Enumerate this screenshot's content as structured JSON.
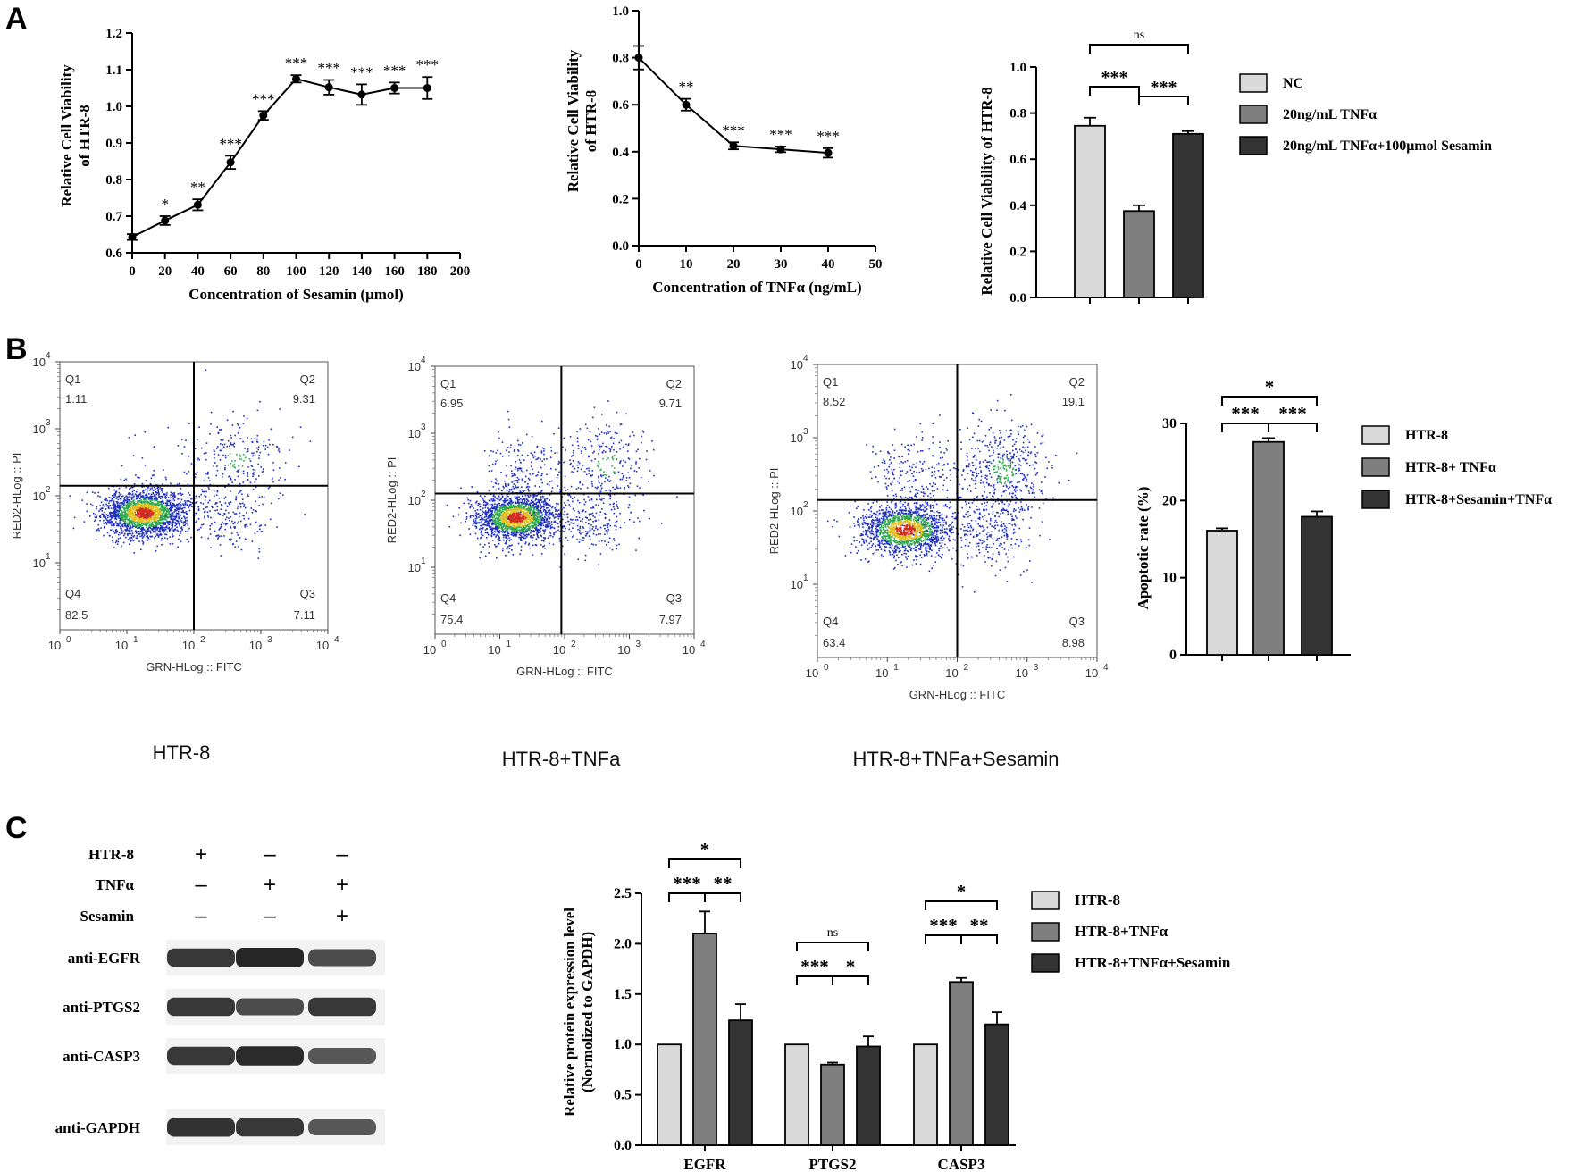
{
  "panel_labels": [
    "A",
    "B",
    "C"
  ],
  "colors": {
    "light": "#d9d9d9",
    "mid": "#7f7f7f",
    "dark": "#333333",
    "flow_low": "#1f2fbf",
    "flow_mid": "#2fa84f",
    "flow_high": "#e0c020",
    "flow_peak": "#d22a1e"
  },
  "chart_data": [
    {
      "id": "A1",
      "type": "line",
      "title": "",
      "xlabel": "Concentration of Sesamin (μmol)",
      "ylabel": "Relative Cell Viability of HTR-8",
      "ylabel_lines": [
        "Relative Cell Viability",
        "of HTR-8"
      ],
      "xlim": [
        0,
        200
      ],
      "ylim": [
        0.6,
        1.2
      ],
      "xticks": [
        "0",
        "20",
        "40",
        "60",
        "80",
        "100",
        "120",
        "140",
        "160",
        "180",
        "200"
      ],
      "yticks": [
        "0.6",
        "0.7",
        "0.8",
        "0.9",
        "1.0",
        "1.1",
        "1.2"
      ],
      "x": [
        0,
        20,
        40,
        60,
        80,
        100,
        120,
        140,
        160,
        180
      ],
      "y": [
        0.643,
        0.688,
        0.731,
        0.847,
        0.975,
        1.075,
        1.052,
        1.032,
        1.05,
        1.05
      ],
      "err": [
        0.008,
        0.012,
        0.015,
        0.018,
        0.012,
        0.01,
        0.02,
        0.028,
        0.015,
        0.03
      ],
      "sig": [
        "",
        "*",
        "**",
        "***",
        "***",
        "***",
        "***",
        "***",
        "***",
        "***"
      ]
    },
    {
      "id": "A2",
      "type": "line",
      "xlabel": "Concentration of TNFα (ng/mL)",
      "ylabel": "Relative Cell Viability of HTR-8",
      "ylabel_lines": [
        "Relative Cell Viability",
        "of HTR-8"
      ],
      "xlim": [
        0,
        50
      ],
      "ylim": [
        0,
        1.0
      ],
      "xticks": [
        "0",
        "10",
        "20",
        "30",
        "40",
        "50"
      ],
      "yticks": [
        "0.0",
        "0.2",
        "0.4",
        "0.6",
        "0.8",
        "1.0"
      ],
      "x": [
        0,
        10,
        20,
        30,
        40
      ],
      "y": [
        0.8,
        0.6,
        0.425,
        0.41,
        0.395
      ],
      "err": [
        0.05,
        0.025,
        0.015,
        0.012,
        0.02
      ],
      "sig": [
        "",
        "**",
        "***",
        "***",
        "***"
      ]
    },
    {
      "id": "A3",
      "type": "bar",
      "ylabel": "Relative Cell Viability of HTR-8",
      "ylim": [
        0,
        1.0
      ],
      "yticks": [
        "0.0",
        "0.2",
        "0.4",
        "0.6",
        "0.8",
        "1.0"
      ],
      "categories": [
        "NC",
        "20ng/mL TNFα",
        "20ng/mL TNFα+100μmol Sesamin"
      ],
      "values": [
        0.745,
        0.375,
        0.71
      ],
      "err": [
        0.035,
        0.025,
        0.012
      ],
      "legend": [
        "NC",
        "20ng/mL TNFα",
        "20ng/mL TNFα+100μmol Sesamin"
      ],
      "comparisons": [
        {
          "a": 0,
          "b": 1,
          "label": "***"
        },
        {
          "a": 1,
          "b": 2,
          "label": "***"
        },
        {
          "a": 0,
          "b": 2,
          "label": "ns"
        }
      ]
    },
    {
      "id": "B-flow-1",
      "type": "scatter",
      "title": "HTR-8",
      "xlabel": "GRN-HLog :: FITC",
      "ylabel": "RED2-HLog :: PI",
      "tick_labels": [
        "10",
        "10",
        "10",
        "10",
        "10"
      ],
      "tick_exponents": [
        "0",
        "1",
        "2",
        "3",
        "4"
      ],
      "quadrants": {
        "Q1": "1.11",
        "Q2": "9.31",
        "Q3": "7.11",
        "Q4": "82.5"
      },
      "quadrant_names": [
        "Q1",
        "Q2",
        "Q3",
        "Q4"
      ],
      "gate": [
        2.0,
        2.15
      ],
      "seed": 11
    },
    {
      "id": "B-flow-2",
      "type": "scatter",
      "title": "HTR-8+TNFa",
      "xlabel": "GRN-HLog :: FITC",
      "ylabel": "RED2-HLog :: PI",
      "tick_labels": [
        "10",
        "10",
        "10",
        "10",
        "10"
      ],
      "tick_exponents": [
        "0",
        "1",
        "2",
        "3",
        "4"
      ],
      "quadrants": {
        "Q1": "6.95",
        "Q2": "9.71",
        "Q3": "7.97",
        "Q4": "75.4"
      },
      "quadrant_names": [
        "Q1",
        "Q2",
        "Q3",
        "Q4"
      ],
      "gate": [
        1.95,
        2.1
      ],
      "seed": 29
    },
    {
      "id": "B-flow-3",
      "type": "scatter",
      "title": "HTR-8+TNFa+Sesamin",
      "xlabel": "GRN-HLog :: FITC",
      "ylabel": "RED2-HLog :: PI",
      "tick_labels": [
        "10",
        "10",
        "10",
        "10",
        "10"
      ],
      "tick_exponents": [
        "0",
        "1",
        "2",
        "3",
        "4"
      ],
      "quadrants": {
        "Q1": "8.52",
        "Q2": "19.1",
        "Q3": "8.98",
        "Q4": "63.4"
      },
      "quadrant_names": [
        "Q1",
        "Q2",
        "Q3",
        "Q4"
      ],
      "gate": [
        2.0,
        2.15
      ],
      "seed": 47
    },
    {
      "id": "B-bar",
      "type": "bar",
      "ylabel": "Apoptotic rate (%)",
      "ylim": [
        0,
        30
      ],
      "yticks": [
        "0",
        "10",
        "20",
        "30"
      ],
      "categories": [
        "HTR-8",
        "HTR-8+ TNFα",
        "HTR-8+Sesamin+TNFα"
      ],
      "values": [
        16.1,
        27.6,
        17.9
      ],
      "err": [
        0.3,
        0.5,
        0.7
      ],
      "legend": [
        "HTR-8",
        "HTR-8+ TNFα",
        "HTR-8+Sesamin+TNFα"
      ],
      "comparisons": [
        {
          "a": 0,
          "b": 1,
          "label": "***"
        },
        {
          "a": 1,
          "b": 2,
          "label": "***"
        },
        {
          "a": 0,
          "b": 2,
          "label": "*"
        }
      ]
    },
    {
      "id": "C-bar",
      "type": "bar",
      "ylabel": "Relative protein expression level (Normolized to GAPDH)",
      "ylabel_lines": [
        "Relative protein expression level",
        "(Normolized to GAPDH)"
      ],
      "ylim": [
        0,
        2.5
      ],
      "yticks": [
        "0.0",
        "0.5",
        "1.0",
        "1.5",
        "2.0",
        "2.5"
      ],
      "categories": [
        "EGFR",
        "PTGS2",
        "CASP3"
      ],
      "series": [
        {
          "name": "HTR-8",
          "values": [
            1.0,
            1.0,
            1.0
          ],
          "err": [
            0,
            0,
            0
          ]
        },
        {
          "name": "HTR-8+TNFα",
          "values": [
            2.1,
            0.8,
            1.62
          ],
          "err": [
            0.22,
            0.02,
            0.04
          ]
        },
        {
          "name": "HTR-8+TNFα+Sesamin",
          "values": [
            1.24,
            0.98,
            1.2
          ],
          "err": [
            0.16,
            0.1,
            0.12
          ]
        }
      ],
      "legend": [
        "HTR-8",
        "HTR-8+TNFα",
        "HTR-8+TNFα+Sesamin"
      ],
      "comparisons": [
        [
          {
            "a": 0,
            "b": 1,
            "label": "***"
          },
          {
            "a": 1,
            "b": 2,
            "label": "**"
          },
          {
            "a": 0,
            "b": 2,
            "label": "*"
          }
        ],
        [
          {
            "a": 0,
            "b": 1,
            "label": "***"
          },
          {
            "a": 1,
            "b": 2,
            "label": "*"
          },
          {
            "a": 0,
            "b": 2,
            "label": "ns"
          }
        ],
        [
          {
            "a": 0,
            "b": 1,
            "label": "***"
          },
          {
            "a": 1,
            "b": 2,
            "label": "**"
          },
          {
            "a": 0,
            "b": 2,
            "label": "*"
          }
        ]
      ]
    }
  ],
  "western_blot": {
    "conditions": [
      {
        "label": "HTR-8",
        "signs": [
          "+",
          "-",
          "-"
        ]
      },
      {
        "label": "TNFα",
        "signs": [
          "-",
          "+",
          "+"
        ]
      },
      {
        "label": "Sesamin",
        "signs": [
          "-",
          "-",
          "+"
        ]
      }
    ],
    "bands": [
      {
        "label": "anti-EGFR",
        "intensity": [
          0.85,
          1.0,
          0.7
        ]
      },
      {
        "label": "anti-PTGS2",
        "intensity": [
          0.85,
          0.7,
          0.85
        ]
      },
      {
        "label": "anti-CASP3",
        "intensity": [
          0.85,
          0.95,
          0.6
        ]
      },
      {
        "label": "anti-GAPDH",
        "intensity": [
          0.9,
          0.85,
          0.6
        ]
      }
    ]
  }
}
